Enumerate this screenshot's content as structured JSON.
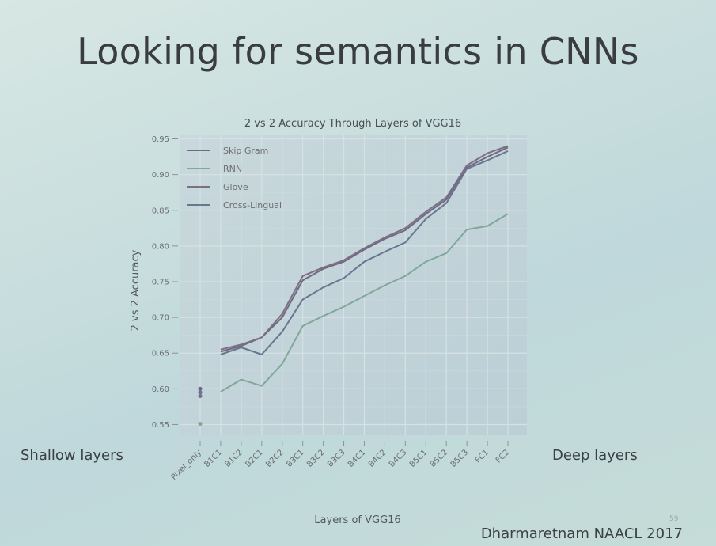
{
  "slide": {
    "title": "Looking for semantics in CNNs",
    "left_annotation": "Shallow layers",
    "right_annotation": "Deep layers",
    "citation": "Dharmaretnam NAACL 2017",
    "slide_number": "59"
  },
  "chart_data": {
    "type": "line",
    "title": "2 vs 2 Accuracy Through Layers of VGG16",
    "xlabel": "Layers of VGG16",
    "ylabel": "2 vs 2 Accuracy",
    "categories": [
      "Pixel_only",
      "B1C1",
      "B1C2",
      "B2C1",
      "B2C2",
      "B3C1",
      "B3C2",
      "B3C3",
      "B4C1",
      "B4C2",
      "B4C3",
      "B5C1",
      "B5C2",
      "B5C3",
      "FC1",
      "FC2"
    ],
    "ylim": [
      0.535,
      0.955
    ],
    "yticks": [
      0.55,
      0.6,
      0.65,
      0.7,
      0.75,
      0.8,
      0.85,
      0.9,
      0.95
    ],
    "ytick_labels": [
      "0.55",
      "0.60",
      "0.65",
      "0.70",
      "0.75",
      "0.80",
      "0.85",
      "0.90",
      "0.95"
    ],
    "grid": true,
    "legend_position": "top-left",
    "series": [
      {
        "name": "Skip Gram",
        "color": "#6f6a80",
        "pixel_only": 0.6,
        "values": [
          null,
          0.652,
          0.66,
          0.672,
          0.7,
          0.752,
          0.768,
          0.778,
          0.795,
          0.81,
          0.822,
          0.845,
          0.865,
          0.91,
          0.925,
          0.938
        ]
      },
      {
        "name": "RNN",
        "color": "#7fa898",
        "pixel_only": 0.551,
        "values": [
          null,
          0.596,
          0.613,
          0.604,
          0.635,
          0.688,
          0.702,
          0.715,
          0.73,
          0.745,
          0.758,
          0.778,
          0.79,
          0.823,
          0.828,
          0.845
        ]
      },
      {
        "name": "Glove",
        "color": "#7d6e86",
        "pixel_only": 0.59,
        "values": [
          null,
          0.655,
          0.662,
          0.672,
          0.705,
          0.758,
          0.77,
          0.78,
          0.797,
          0.812,
          0.825,
          0.848,
          0.868,
          0.913,
          0.93,
          0.94
        ]
      },
      {
        "name": "Cross-Lingual",
        "color": "#6a7690",
        "pixel_only": 0.595,
        "values": [
          null,
          0.648,
          0.658,
          0.648,
          0.68,
          0.725,
          0.742,
          0.755,
          0.778,
          0.792,
          0.805,
          0.838,
          0.86,
          0.908,
          0.92,
          0.933
        ]
      }
    ]
  }
}
